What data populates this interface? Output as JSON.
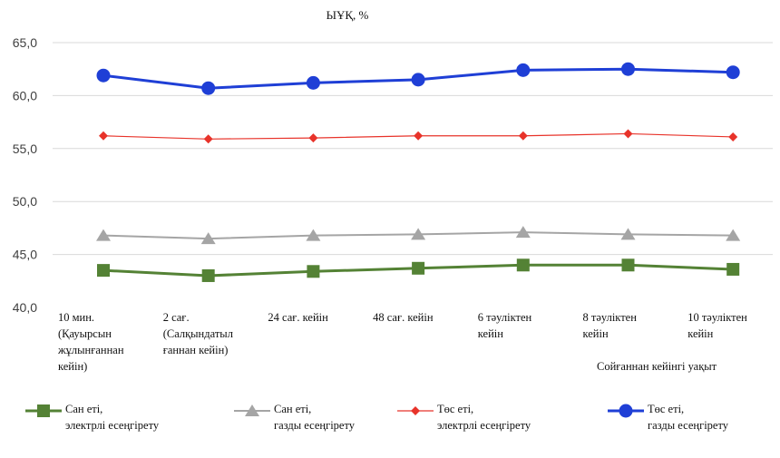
{
  "chart_data": {
    "type": "line",
    "title": "ЫҰҚ, %",
    "xlabel": "Сойғаннан кейінгі уақыт",
    "ylabel": "",
    "ylim": [
      40,
      65
    ],
    "yticks": [
      "40,0",
      "45,0",
      "50,0",
      "55,0",
      "60,0",
      "65,0"
    ],
    "ytick_values": [
      40,
      45,
      50,
      55,
      60,
      65
    ],
    "grid": true,
    "legend_position": "bottom",
    "categories": [
      [
        "10 мин.",
        "(Қауырсын",
        "жұлынғаннан",
        "кейін)"
      ],
      [
        "2 сағ.",
        "(Салқындатыл",
        "ғаннан кейін)"
      ],
      [
        "24 сағ. кейін"
      ],
      [
        "48 сағ. кейін"
      ],
      [
        "6 тәуліктен",
        "кейін"
      ],
      [
        "8 тәуліктен",
        "кейін"
      ],
      [
        "10 тәуліктен",
        "кейін"
      ]
    ],
    "series": [
      {
        "name": "Сан еті, электрлі есеңгірету",
        "color": "#548235",
        "marker": "square",
        "values": [
          43.5,
          43.0,
          43.4,
          43.7,
          44.0,
          44.0,
          43.6
        ]
      },
      {
        "name": "Сан еті, газды есеңгірету",
        "color": "#a5a5a5",
        "marker": "triangle",
        "values": [
          46.8,
          46.5,
          46.8,
          46.9,
          47.1,
          46.9,
          46.8
        ]
      },
      {
        "name": "Төс еті, электрлі есеңгірету",
        "color": "#e8332a",
        "marker": "diamond",
        "values": [
          56.2,
          55.9,
          56.0,
          56.2,
          56.2,
          56.4,
          56.1
        ]
      },
      {
        "name": "Төс еті, газды есеңгірету",
        "color": "#1f3fd6",
        "marker": "circle",
        "values": [
          61.9,
          60.7,
          61.2,
          61.5,
          62.4,
          62.5,
          62.2
        ]
      }
    ]
  }
}
